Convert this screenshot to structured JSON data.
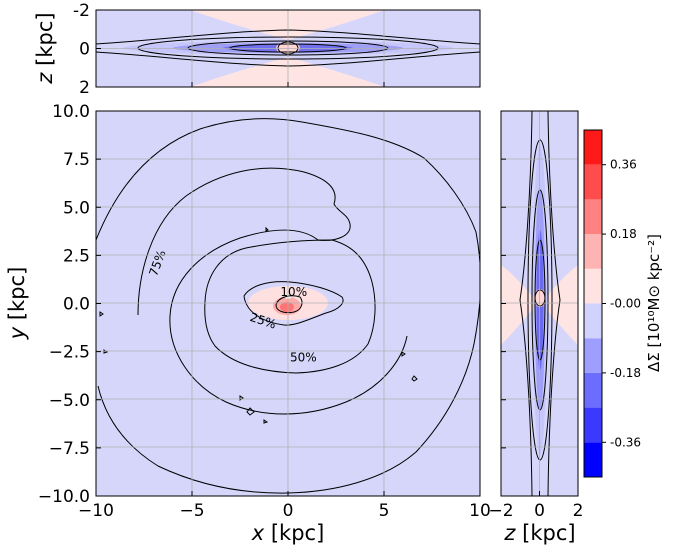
{
  "chart_data": [
    {
      "type": "heatmap",
      "title": "",
      "panel": "edge-on (x-z) projection",
      "xlabel": "x",
      "ylabel": "z",
      "unit": "[kpc]",
      "xlim": [
        -10,
        10
      ],
      "ylim": [
        -2,
        2
      ],
      "xticks": [],
      "yticks": [
        "-2",
        "0",
        "2"
      ],
      "grid": true
    },
    {
      "type": "heatmap",
      "title": "",
      "panel": "face-on (x-y) projection",
      "xlabel": "x",
      "ylabel": "y",
      "unit": "[kpc]",
      "xlim": [
        -10,
        10
      ],
      "ylim": [
        -10,
        10
      ],
      "xticks": [
        "−10",
        "−5",
        "0",
        "5",
        "10"
      ],
      "yticks": [
        "10.0",
        "7.5",
        "5.0",
        "2.5",
        "0.0",
        "−2.5",
        "−5.0",
        "−7.5",
        "−10.0"
      ],
      "grid": true,
      "contour_labels": [
        {
          "text": "10%",
          "x": 0.3,
          "y": 0.6
        },
        {
          "text": "25%",
          "x": -1.3,
          "y": -0.9
        },
        {
          "text": "50%",
          "x": 0.8,
          "y": -2.8
        },
        {
          "text": "75%",
          "x": -6.8,
          "y": 2.1
        }
      ]
    },
    {
      "type": "heatmap",
      "title": "",
      "panel": "edge-on (z-y) projection",
      "xlabel": "z",
      "ylabel": "",
      "unit": "[kpc]",
      "xlim": [
        -2,
        2
      ],
      "ylim": [
        -10,
        10
      ],
      "xticks": [
        "−2",
        "0",
        "2"
      ],
      "grid": true
    }
  ],
  "colorbar": {
    "label": "ΔΣ [10¹⁰M⊙ kpc⁻²]",
    "range": [
      -0.45,
      0.45
    ],
    "levels": [
      -0.45,
      -0.36,
      -0.27,
      -0.18,
      -0.09,
      0.0,
      0.09,
      0.18,
      0.27,
      0.36,
      0.45
    ],
    "ticks": [
      {
        "value": 0.36,
        "label": "0.36"
      },
      {
        "value": 0.18,
        "label": "0.18"
      },
      {
        "value": 0.0,
        "label": "-0.00"
      },
      {
        "value": -0.18,
        "label": "-0.18"
      },
      {
        "value": -0.36,
        "label": "-0.36"
      }
    ],
    "colors": [
      "#0000ff",
      "#3a3aff",
      "#6c6cff",
      "#9e9eff",
      "#d2d2ff",
      "#ffe2e2",
      "#ffb4b4",
      "#ff8181",
      "#ff4d4d",
      "#ff1a1a"
    ]
  }
}
